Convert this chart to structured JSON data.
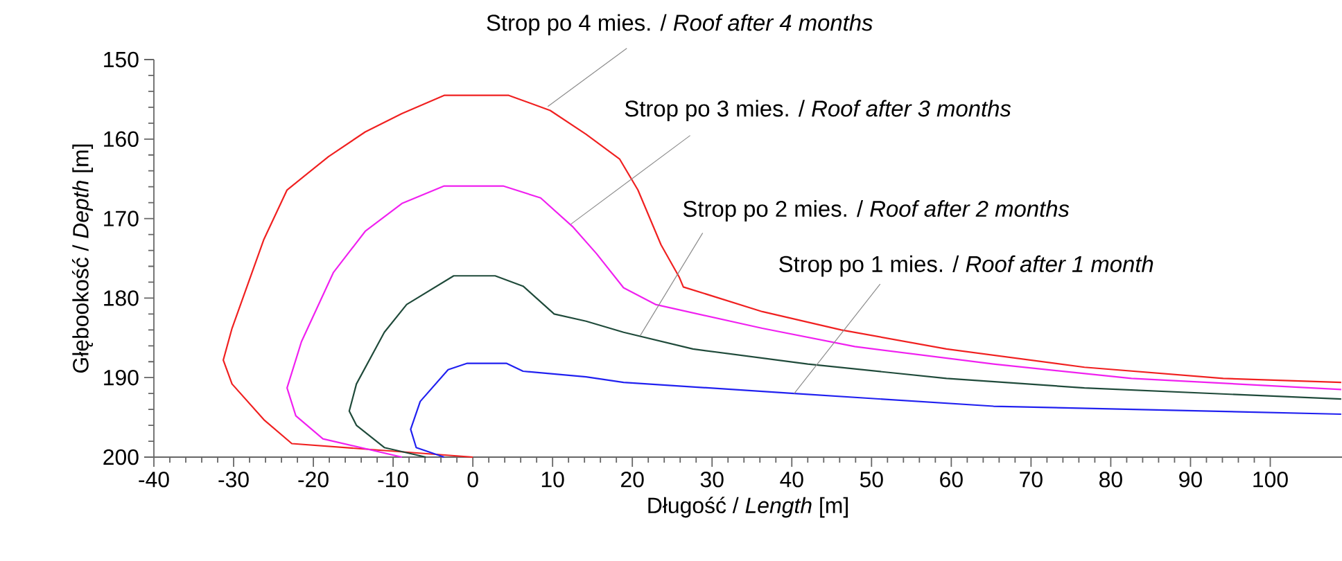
{
  "chart_data": {
    "type": "line",
    "xlabel": "Długość / *Length* [m]",
    "ylabel": "Głębookość / *Depth* [m]",
    "xlim": [
      -40,
      109
    ],
    "ylim": [
      200,
      150
    ],
    "xticks": [
      -40,
      -30,
      -20,
      -10,
      0,
      10,
      20,
      30,
      40,
      50,
      60,
      70,
      80,
      90,
      100
    ],
    "yticks": [
      150,
      160,
      170,
      180,
      190,
      200
    ],
    "grid": false,
    "marker": "none",
    "line_style": "solid",
    "series": [
      {
        "color": "#f02020",
        "x": [
          0,
          -22.7,
          -26.2,
          -30.2,
          -31.3,
          -30.2,
          -26.2,
          -23.3,
          -18.1,
          -13.5,
          -8.9,
          -3.6,
          4.5,
          9.7,
          14.2,
          18.4,
          20.7,
          23.6,
          25.9,
          26.4,
          36.3,
          46.2,
          59.4,
          76.7,
          94.1,
          108.9
        ],
        "values": [
          200,
          198.3,
          195.3,
          190.8,
          187.8,
          183.8,
          172.6,
          166.4,
          162.2,
          159.1,
          156.8,
          154.5,
          154.5,
          156.4,
          159.4,
          162.5,
          166.4,
          173.3,
          177.4,
          178.6,
          181.7,
          184.0,
          186.4,
          188.7,
          190.1,
          190.6
        ]
      },
      {
        "color": "#f020f0",
        "x": [
          -8.9,
          -18.8,
          -22.2,
          -23.3,
          -21.5,
          -17.5,
          -13.5,
          -8.9,
          -3.6,
          3.8,
          8.5,
          12.5,
          15.5,
          18.9,
          22.9,
          36.3,
          47.9,
          65.3,
          82.6,
          108.9
        ],
        "values": [
          200,
          197.7,
          194.8,
          191.3,
          185.5,
          176.8,
          171.6,
          168.1,
          165.9,
          165.9,
          167.4,
          171.0,
          174.4,
          178.7,
          180.8,
          183.8,
          186.1,
          188.3,
          190.1,
          191.5
        ]
      },
      {
        "color": "#1f4a3a",
        "x": [
          -5.9,
          -11.1,
          -14.6,
          -15.5,
          -14.6,
          -11.1,
          -8.3,
          -2.4,
          2.8,
          6.3,
          10.2,
          14.2,
          18.9,
          27.6,
          42.0,
          59.4,
          76.7,
          108.9
        ],
        "values": [
          200,
          198.8,
          196.0,
          194.2,
          190.8,
          184.3,
          180.8,
          177.2,
          177.2,
          178.5,
          182.0,
          182.9,
          184.3,
          186.4,
          188.3,
          190.1,
          191.3,
          192.7
        ]
      },
      {
        "color": "#2020f0",
        "x": [
          -3.6,
          -7.1,
          -7.8,
          -6.6,
          -3.1,
          -0.7,
          4.2,
          6.3,
          14.2,
          18.9,
          40.3,
          65.3,
          108.9
        ],
        "values": [
          200,
          198.8,
          196.5,
          193.0,
          189.0,
          188.2,
          188.2,
          189.2,
          189.9,
          190.6,
          192.0,
          193.6,
          194.6
        ]
      }
    ],
    "annotations": [
      {
        "text": "Strop po 4 mies. / *Roof after 4 months*",
        "x": 9.4,
        "y": 155.9
      },
      {
        "text": "Strop po 3 mies. / *Roof after 3 months*",
        "x": 12.3,
        "y": 170.7
      },
      {
        "text": "Strop po 2 mies. / *Roof after 2 months*",
        "x": 21,
        "y": 184.7
      },
      {
        "text": "Strop po 1 mies. / *Roof after 1 month*",
        "x": 40.3,
        "y": 192.0
      }
    ]
  }
}
